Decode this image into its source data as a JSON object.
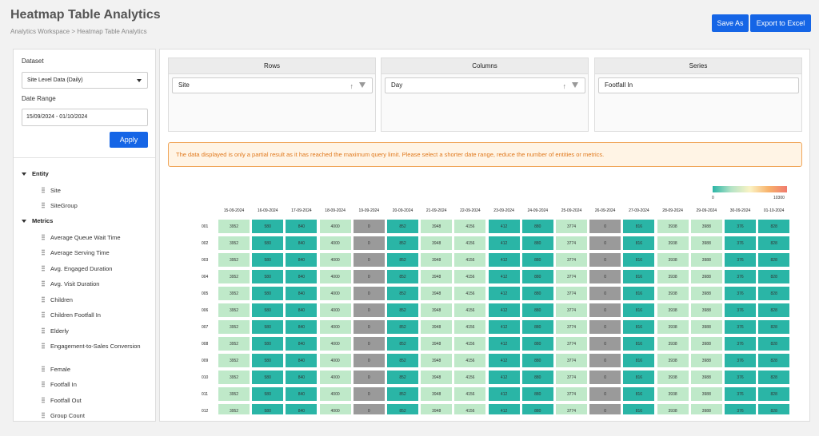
{
  "header": {
    "title": "Heatmap Table Analytics",
    "breadcrumb": "Analytics Workspace > Heatmap Table Analytics",
    "save_as": "Save As",
    "export": "Export to Excel"
  },
  "filters": {
    "dataset_label": "Dataset",
    "dataset_value": "Site Level Data (Daily)",
    "date_label": "Date Range",
    "date_value": "15/09/2024 - 01/10/2024",
    "apply": "Apply"
  },
  "tree": {
    "entity_label": "Entity",
    "entity_items": [
      "Site",
      "SiteGroup"
    ],
    "metrics_label": "Metrics",
    "metric_items": [
      "Average Queue Wait Time",
      "Average Serving Time",
      "Avg. Engaged Duration",
      "Avg. Visit Duration",
      "Children",
      "Children Footfall In",
      "Elderly",
      "Engagement-to-Sales Conversion",
      "Female",
      "Footfall In",
      "Footfall Out",
      "Group Count"
    ]
  },
  "pivot": {
    "rows_label": "Rows",
    "rows_value": "Site",
    "columns_label": "Columns",
    "columns_value": "Day",
    "series_label": "Series",
    "series_value": "Footfall In",
    "sort_icon": "↑"
  },
  "warning": "The data displayed is only a partial result as it has reached the maximum query limit. Please select a shorter date range, reduce the number of entities or metrics.",
  "colors": {
    "primary": "#1565e6",
    "warning": "#e07a1f",
    "teal": "#2ab5a6",
    "green": "#bfe9c9",
    "gray": "#9a9a9a"
  },
  "chart_data": {
    "type": "heatmap",
    "legend_min": "0",
    "legend_max": "10300",
    "columns": [
      "15-09-2024",
      "16-09-2024",
      "17-09-2024",
      "18-09-2024",
      "19-09-2024",
      "20-09-2024",
      "21-09-2024",
      "22-09-2024",
      "23-09-2024",
      "24-09-2024",
      "25-09-2024",
      "26-09-2024",
      "27-09-2024",
      "28-09-2024",
      "29-09-2024",
      "30-09-2024",
      "01-10-2024"
    ],
    "rows": [
      "001",
      "002",
      "003",
      "004",
      "005",
      "006",
      "007",
      "008",
      "009",
      "010",
      "011",
      "012"
    ],
    "row_values": [
      3952,
      580,
      840,
      4000,
      0,
      852,
      3948,
      4156,
      412,
      880,
      3774,
      0,
      816,
      3938,
      3988,
      376,
      828
    ]
  }
}
